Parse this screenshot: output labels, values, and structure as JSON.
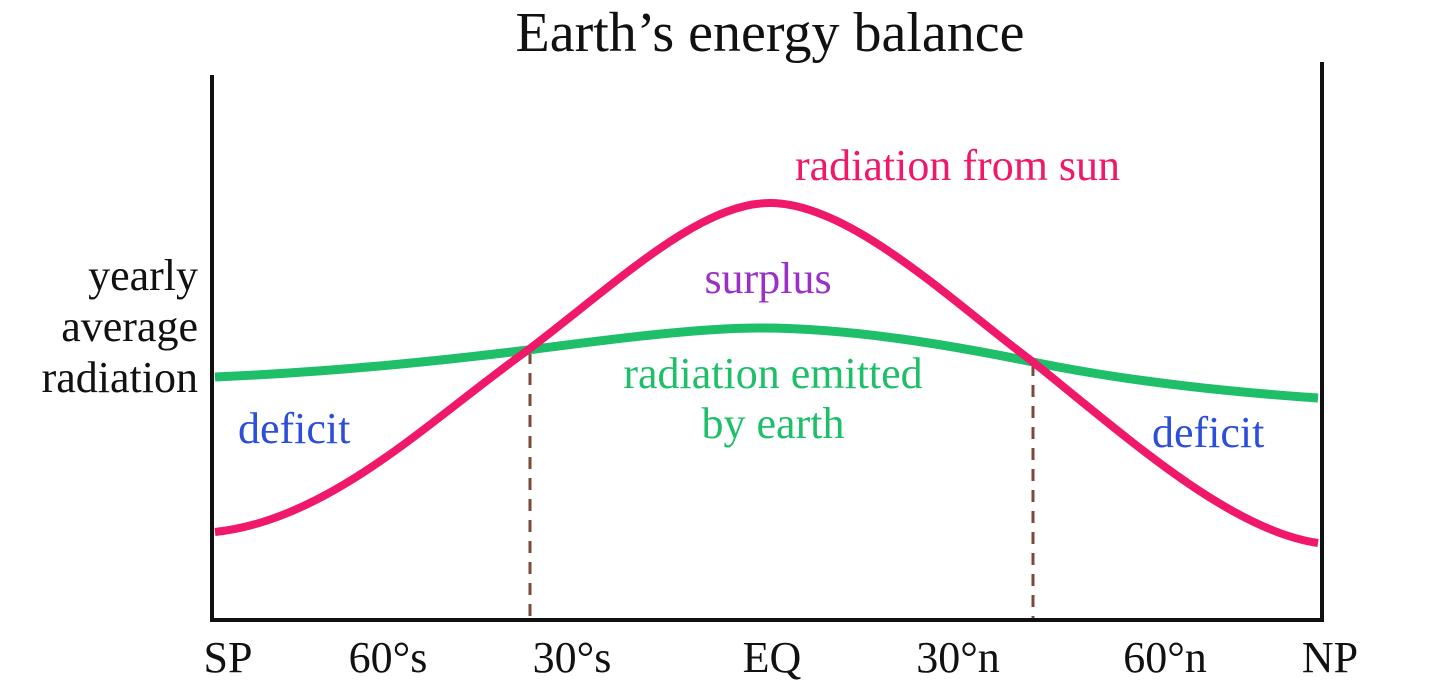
{
  "title": "Earth’s energy balance",
  "y_axis_label": [
    "yearly",
    "average",
    "radiation"
  ],
  "x_labels": [
    "SP",
    "60°s",
    "30°s",
    "EQ",
    "30°n",
    "60°n",
    "NP"
  ],
  "curve_labels": {
    "sun": "radiation from sun",
    "earth": [
      "radiation emitted",
      "by earth"
    ]
  },
  "regions": {
    "surplus": "surplus",
    "deficit_left": "deficit",
    "deficit_right": "deficit"
  }
}
